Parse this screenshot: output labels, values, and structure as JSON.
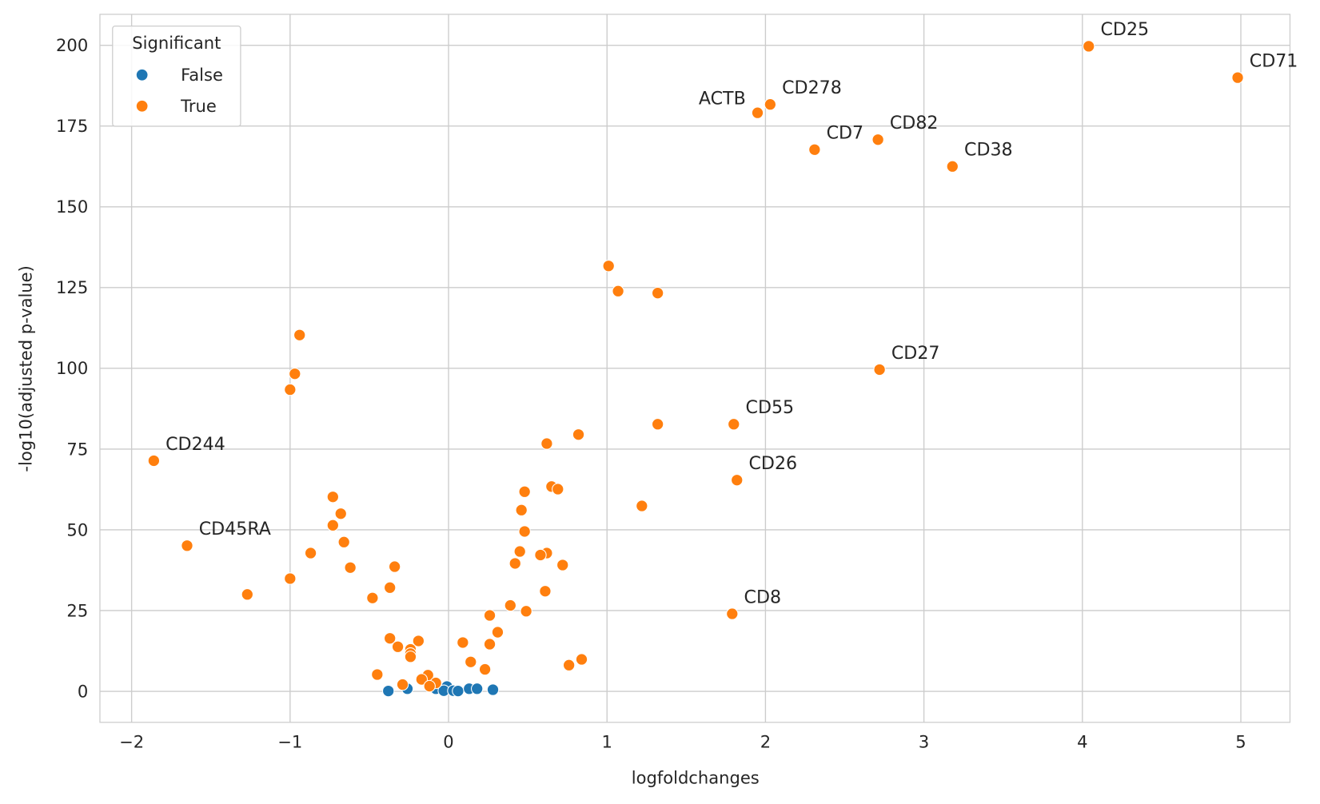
{
  "chart_data": {
    "type": "scatter",
    "title": "",
    "xlabel": "logfoldchanges",
    "ylabel": "-log10(adjusted p-value)",
    "xlim": [
      -2.2,
      5.31
    ],
    "ylim": [
      -9.6,
      209.6
    ],
    "xticks": [
      -2,
      -1,
      0,
      1,
      2,
      3,
      4,
      5
    ],
    "xtick_labels": [
      "−2",
      "−1",
      "0",
      "1",
      "2",
      "3",
      "4",
      "5"
    ],
    "yticks": [
      0,
      25,
      50,
      75,
      100,
      125,
      150,
      175,
      200
    ],
    "grid": true,
    "legend": {
      "title": "Significant",
      "placement": "top-left",
      "entries": [
        "False",
        "True"
      ]
    },
    "colors": {
      "False": "#1f77b4",
      "True": "#ff7f0e"
    },
    "series": [
      {
        "name": "False",
        "points": [
          [
            -0.38,
            0.1
          ],
          [
            -0.26,
            0.8
          ],
          [
            -0.08,
            0.8
          ],
          [
            -0.01,
            1.5
          ],
          [
            -0.03,
            0.2
          ],
          [
            0.03,
            0.2
          ],
          [
            0.06,
            0.1
          ],
          [
            0.13,
            0.8
          ],
          [
            0.18,
            0.8
          ],
          [
            0.28,
            0.5
          ]
        ]
      },
      {
        "name": "True",
        "points": [
          [
            4.04,
            199.7
          ],
          [
            4.98,
            190.0
          ],
          [
            2.03,
            181.7
          ],
          [
            1.95,
            179.1
          ],
          [
            2.31,
            167.7
          ],
          [
            2.71,
            170.8
          ],
          [
            3.18,
            162.5
          ],
          [
            1.01,
            131.7
          ],
          [
            1.07,
            123.9
          ],
          [
            1.32,
            123.3
          ],
          [
            -0.94,
            110.3
          ],
          [
            -0.97,
            98.3
          ],
          [
            -1.0,
            93.4
          ],
          [
            2.72,
            99.6
          ],
          [
            1.32,
            82.7
          ],
          [
            1.8,
            82.7
          ],
          [
            0.82,
            79.5
          ],
          [
            0.62,
            76.7
          ],
          [
            -1.86,
            71.4
          ],
          [
            1.82,
            65.4
          ],
          [
            0.65,
            63.4
          ],
          [
            0.69,
            62.6
          ],
          [
            0.48,
            61.8
          ],
          [
            -0.73,
            60.2
          ],
          [
            1.22,
            57.4
          ],
          [
            0.46,
            56.1
          ],
          [
            -0.68,
            55.0
          ],
          [
            -0.73,
            51.4
          ],
          [
            0.48,
            49.5
          ],
          [
            -0.66,
            46.2
          ],
          [
            -1.65,
            45.1
          ],
          [
            0.45,
            43.3
          ],
          [
            0.62,
            42.8
          ],
          [
            -0.87,
            42.8
          ],
          [
            0.58,
            42.2
          ],
          [
            0.42,
            39.6
          ],
          [
            0.72,
            39.1
          ],
          [
            -0.34,
            38.6
          ],
          [
            -0.62,
            38.3
          ],
          [
            -1.0,
            34.9
          ],
          [
            -0.37,
            32.1
          ],
          [
            0.61,
            31.0
          ],
          [
            -1.27,
            30.0
          ],
          [
            -0.48,
            28.9
          ],
          [
            0.39,
            26.6
          ],
          [
            0.49,
            24.8
          ],
          [
            1.79,
            24.0
          ],
          [
            0.26,
            23.5
          ],
          [
            0.31,
            18.3
          ],
          [
            -0.37,
            16.4
          ],
          [
            -0.19,
            15.6
          ],
          [
            0.09,
            15.1
          ],
          [
            0.26,
            14.6
          ],
          [
            -0.32,
            13.8
          ],
          [
            -0.24,
            13.0
          ],
          [
            -0.24,
            11.7
          ],
          [
            -0.24,
            10.7
          ],
          [
            0.84,
            9.9
          ],
          [
            0.14,
            9.1
          ],
          [
            0.76,
            8.1
          ],
          [
            0.23,
            6.8
          ],
          [
            -0.45,
            5.2
          ],
          [
            -0.13,
            5.0
          ],
          [
            -0.17,
            3.7
          ],
          [
            -0.08,
            2.6
          ],
          [
            -0.29,
            2.1
          ],
          [
            -0.12,
            1.6
          ]
        ]
      }
    ],
    "annotations": [
      {
        "text": "CD25",
        "x": 4.04,
        "y": 199.7
      },
      {
        "text": "CD71",
        "x": 4.98,
        "y": 190.0
      },
      {
        "text": "CD278",
        "x": 2.03,
        "y": 181.7
      },
      {
        "text": "ACTB",
        "x": 1.95,
        "y": 179.1
      },
      {
        "text": "CD7",
        "x": 2.31,
        "y": 167.7
      },
      {
        "text": "CD82",
        "x": 2.71,
        "y": 170.8
      },
      {
        "text": "CD38",
        "x": 3.18,
        "y": 162.5
      },
      {
        "text": "CD27",
        "x": 2.72,
        "y": 99.6
      },
      {
        "text": "CD55",
        "x": 1.8,
        "y": 82.7
      },
      {
        "text": "CD26",
        "x": 1.82,
        "y": 65.4
      },
      {
        "text": "CD244",
        "x": -1.86,
        "y": 71.4
      },
      {
        "text": "CD45RA",
        "x": -1.65,
        "y": 45.1
      },
      {
        "text": "CD8",
        "x": 1.79,
        "y": 24.0
      }
    ]
  }
}
